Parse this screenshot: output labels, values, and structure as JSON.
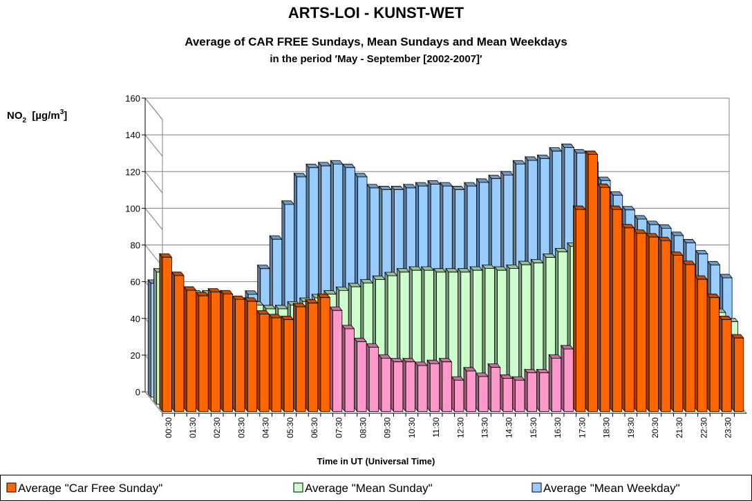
{
  "chart_data": {
    "type": "bar3d",
    "title": "ARTS-LOI  -  KUNST-WET",
    "subtitle": "Average of CAR FREE Sundays, Mean Sundays and Mean Weekdays",
    "subtitle2": "in the period  ′May - September [2002-2007]′",
    "ylabel": [
      "NO",
      "2",
      "  [µg/m",
      "3",
      "]"
    ],
    "xlabel": "Time in UT (Universal Time)",
    "ylim": [
      0,
      160
    ],
    "yticks": [
      0,
      20,
      40,
      60,
      80,
      100,
      120,
      140,
      160
    ],
    "grid": true,
    "categories": [
      "00:30",
      null,
      "01:30",
      null,
      "02:30",
      null,
      "03:30",
      null,
      "04:30",
      null,
      "05:30",
      null,
      "06:30",
      null,
      "07:30",
      null,
      "08:30",
      null,
      "09:30",
      null,
      "10:30",
      null,
      "11:30",
      null,
      "12:30",
      null,
      "13:30",
      null,
      "14:30",
      null,
      "15:30",
      null,
      "16:30",
      null,
      "17:30",
      null,
      "18:30",
      null,
      "19:30",
      null,
      "20:30",
      null,
      "21:30",
      null,
      "22:30",
      null,
      "23:30",
      null
    ],
    "series": [
      {
        "name": "Average \"Car Free Sunday\"",
        "color": "#ff6600",
        "colors": [
          "#ff6600",
          "#ff6600",
          "#ff6600",
          "#ff6600",
          "#ff6600",
          "#ff6600",
          "#ff6600",
          "#ff6600",
          "#ff6600",
          "#ff6600",
          "#ff6600",
          "#ff6600",
          "#ff6600",
          "#ff6600",
          "#ff99cc",
          "#ff99cc",
          "#ff99cc",
          "#ff99cc",
          "#ff99cc",
          "#ff99cc",
          "#ff99cc",
          "#ff99cc",
          "#ff99cc",
          "#ff99cc",
          "#ff99cc",
          "#ff99cc",
          "#ff99cc",
          "#ff99cc",
          "#ff99cc",
          "#ff99cc",
          "#ff99cc",
          "#ff99cc",
          "#ff99cc",
          "#ff99cc",
          "#ff6600",
          "#ff6600",
          "#ff6600",
          "#ff6600",
          "#ff6600",
          "#ff6600",
          "#ff6600",
          "#ff6600",
          "#ff6600",
          "#ff6600",
          "#ff6600",
          "#ff6600",
          "#ff6600",
          "#ff6600"
        ],
        "values": [
          84,
          74,
          66,
          63,
          65,
          64,
          61,
          60,
          53,
          51,
          50,
          57,
          59,
          62,
          55,
          45,
          38,
          35,
          29,
          27,
          27,
          25,
          26,
          27,
          17,
          22,
          19,
          24,
          18,
          17,
          21,
          21,
          29,
          34,
          110,
          140,
          122,
          110,
          100,
          97,
          95,
          93,
          85,
          80,
          72,
          62,
          50,
          40
        ]
      },
      {
        "name": "Average \"Mean Sunday\"",
        "color": "#ccffcc",
        "values": [
          72,
          66,
          62,
          60,
          60,
          59,
          57,
          56,
          54,
          52,
          52,
          54,
          56,
          58,
          60,
          62,
          64,
          66,
          68,
          70,
          72,
          73,
          73,
          72,
          72,
          72,
          73,
          74,
          73,
          74,
          76,
          77,
          80,
          83,
          86,
          85,
          82,
          78,
          75,
          72,
          70,
          68,
          65,
          62,
          58,
          55,
          50,
          45
        ]
      },
      {
        "name": "Average \"Mean Weekday\"",
        "color": "#99ccff",
        "values": [
          62,
          58,
          55,
          53,
          52,
          51,
          50,
          52,
          56,
          70,
          86,
          105,
          120,
          125,
          126,
          127,
          125,
          120,
          114,
          113,
          113,
          114,
          115,
          116,
          115,
          113,
          115,
          117,
          119,
          121,
          127,
          129,
          130,
          134,
          136,
          133,
          128,
          118,
          110,
          102,
          97,
          94,
          92,
          88,
          84,
          78,
          72,
          65
        ]
      }
    ]
  }
}
